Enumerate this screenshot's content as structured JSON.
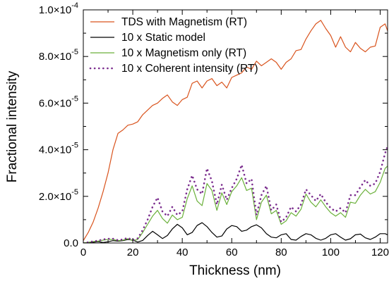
{
  "chart_data": {
    "type": "line",
    "title": "",
    "xlabel": "Thickness (nm)",
    "ylabel": "Fractional intensity",
    "xlim": [
      0,
      123
    ],
    "ylim": [
      0,
      0.0001
    ],
    "grid": false,
    "legend_position": "top-left",
    "x_ticks": [
      {
        "value": 0,
        "label": "0"
      },
      {
        "value": 20,
        "label": "20"
      },
      {
        "value": 40,
        "label": "40"
      },
      {
        "value": 60,
        "label": "60"
      },
      {
        "value": 80,
        "label": "80"
      },
      {
        "value": 100,
        "label": "100"
      },
      {
        "value": 120,
        "label": "120"
      }
    ],
    "y_ticks": [
      {
        "value": 0,
        "mantissa": "0.0",
        "exp": ""
      },
      {
        "value": 2e-05,
        "mantissa": "2.0×10",
        "exp": "-5"
      },
      {
        "value": 4e-05,
        "mantissa": "4.0×10",
        "exp": "-5"
      },
      {
        "value": 6e-05,
        "mantissa": "6.0×10",
        "exp": "-5"
      },
      {
        "value": 8e-05,
        "mantissa": "8.0×10",
        "exp": "-5"
      },
      {
        "value": 0.0001,
        "mantissa": "1.0×10",
        "exp": "-4"
      }
    ],
    "series": [
      {
        "name": "TDS with Magnetism (RT)",
        "color": "#d9541e",
        "style": "solid",
        "x": [
          0,
          2,
          4,
          6,
          8,
          10,
          12,
          14,
          16,
          18,
          20,
          22,
          24,
          26,
          28,
          30,
          32,
          34,
          36,
          38,
          40,
          42,
          44,
          46,
          48,
          50,
          52,
          54,
          56,
          58,
          60,
          62,
          64,
          66,
          68,
          70,
          72,
          74,
          76,
          78,
          80,
          82,
          84,
          86,
          88,
          90,
          92,
          94,
          96,
          98,
          100,
          102,
          104,
          106,
          108,
          110,
          112,
          114,
          116,
          118,
          120,
          122,
          123
        ],
        "y": [
          1e-06,
          4.5e-06,
          9e-06,
          1.5e-05,
          2.2e-05,
          3e-05,
          4e-05,
          4.7e-05,
          4.85e-05,
          5.05e-05,
          5.1e-05,
          5.2e-05,
          5.5e-05,
          5.7e-05,
          5.9e-05,
          6e-05,
          6.2e-05,
          6.35e-05,
          6.05e-05,
          5.9e-05,
          6.15e-05,
          6.25e-05,
          6.85e-05,
          6.95e-05,
          6.65e-05,
          6.95e-05,
          7.05e-05,
          6.75e-05,
          6.9e-05,
          6.65e-05,
          7.1e-05,
          7.2e-05,
          7.3e-05,
          7.55e-05,
          7.45e-05,
          7.8e-05,
          7.6e-05,
          7.75e-05,
          7.9e-05,
          7.75e-05,
          7.45e-05,
          7.75e-05,
          7.9e-05,
          8.25e-05,
          8.3e-05,
          8.75e-05,
          9.1e-05,
          9.4e-05,
          9.55e-05,
          9.2e-05,
          8.9e-05,
          8.4e-05,
          8.85e-05,
          8.4e-05,
          8.2e-05,
          8.6e-05,
          8.35e-05,
          8.2e-05,
          8.4e-05,
          8.45e-05,
          9.25e-05,
          9.4e-05,
          9.1e-05
        ]
      },
      {
        "name": "10 x Static model",
        "color": "#000000",
        "style": "solid",
        "x": [
          0,
          2,
          4,
          6,
          8,
          10,
          12,
          14,
          16,
          18,
          20,
          22,
          24,
          26,
          28,
          30,
          32,
          34,
          36,
          38,
          40,
          42,
          44,
          46,
          48,
          50,
          52,
          54,
          56,
          58,
          60,
          62,
          64,
          66,
          68,
          70,
          72,
          74,
          76,
          78,
          80,
          82,
          84,
          86,
          88,
          90,
          92,
          94,
          96,
          98,
          100,
          102,
          104,
          106,
          108,
          110,
          112,
          114,
          116,
          118,
          120,
          122,
          123
        ],
        "y": [
          0,
          0,
          3e-07,
          6e-07,
          2e-07,
          5e-07,
          1e-06,
          8e-07,
          1e-06,
          1.5e-06,
          1.2e-06,
          4e-07,
          1.1e-06,
          3.2e-06,
          5e-06,
          3.5e-06,
          1.9e-06,
          3.2e-06,
          6e-06,
          8e-06,
          6.5e-06,
          3.5e-06,
          4.5e-06,
          7.5e-06,
          8.7e-06,
          7e-06,
          4.5e-06,
          2.5e-06,
          3e-06,
          6e-06,
          7.5e-06,
          7e-06,
          5e-06,
          5.5e-06,
          7e-06,
          7.8e-06,
          6.5e-06,
          4e-06,
          2.5e-06,
          2.2e-06,
          3.5e-06,
          4e-06,
          1.5e-06,
          1.2e-06,
          2.8e-06,
          4e-06,
          3.5e-06,
          2e-06,
          1.2e-06,
          2e-06,
          3.5e-06,
          4e-06,
          2.5e-06,
          1.2e-06,
          1.8e-06,
          3.5e-06,
          3.8e-06,
          2.2e-06,
          1.5e-06,
          2.5e-06,
          4e-06,
          4e-06,
          3.5e-06
        ]
      },
      {
        "name": "10 x Magnetism only (RT)",
        "color": "#6ab03a",
        "style": "solid",
        "x": [
          0,
          2,
          4,
          6,
          8,
          10,
          12,
          14,
          16,
          18,
          20,
          22,
          24,
          26,
          28,
          30,
          32,
          34,
          36,
          38,
          40,
          42,
          44,
          46,
          48,
          50,
          52,
          54,
          56,
          58,
          60,
          62,
          64,
          66,
          68,
          70,
          72,
          74,
          76,
          78,
          80,
          82,
          84,
          86,
          88,
          90,
          92,
          94,
          96,
          98,
          100,
          102,
          104,
          106,
          108,
          110,
          112,
          114,
          116,
          118,
          120,
          122,
          123
        ],
        "y": [
          0,
          3e-07,
          6e-07,
          8e-07,
          1.2e-06,
          1.5e-06,
          1.5e-06,
          1e-06,
          1.2e-06,
          1.8e-06,
          1e-06,
          1.5e-06,
          4.5e-06,
          8e-06,
          1.15e-05,
          1.4e-05,
          1.05e-05,
          8.5e-06,
          1.2e-05,
          1e-05,
          1.1e-05,
          1.9e-05,
          2.45e-05,
          1.8e-05,
          1.6e-05,
          2.55e-05,
          2.25e-05,
          1.4e-05,
          2.15e-05,
          1.65e-05,
          2.2e-05,
          2.45e-05,
          2.8e-05,
          2.25e-05,
          2.35e-05,
          1e-05,
          1.75e-05,
          2.05e-05,
          1.25e-05,
          1.4e-05,
          8e-06,
          9.5e-06,
          1.3e-05,
          1.15e-05,
          1.45e-05,
          2.1e-05,
          1.75e-05,
          1.55e-05,
          1.85e-05,
          1.55e-05,
          1.3e-05,
          1.15e-05,
          1.3e-05,
          1.1e-05,
          1.75e-05,
          1.7e-05,
          2.05e-05,
          2.3e-05,
          2.1e-05,
          2.2e-05,
          2.6e-05,
          3.2e-05,
          3.3e-05
        ]
      },
      {
        "name": "10 x Coherent intensity (RT)",
        "color": "#7b2d8e",
        "style": "dotted",
        "x": [
          0,
          2,
          4,
          6,
          8,
          10,
          12,
          14,
          16,
          18,
          20,
          22,
          24,
          26,
          28,
          30,
          32,
          34,
          36,
          38,
          40,
          42,
          44,
          46,
          48,
          50,
          52,
          54,
          56,
          58,
          60,
          62,
          64,
          66,
          68,
          70,
          72,
          74,
          76,
          78,
          80,
          82,
          84,
          86,
          88,
          90,
          92,
          94,
          96,
          98,
          100,
          102,
          104,
          106,
          108,
          110,
          112,
          114,
          116,
          118,
          120,
          122,
          123
        ],
        "y": [
          0,
          3e-07,
          7e-07,
          1e-06,
          1.5e-06,
          1.8e-06,
          1.8e-06,
          1.2e-06,
          1.5e-06,
          2.2e-06,
          1.2e-06,
          2e-06,
          5.5e-06,
          1e-05,
          1.55e-05,
          1.95e-05,
          1.35e-05,
          1.15e-05,
          1.55e-05,
          1.2e-05,
          1.35e-05,
          2.3e-05,
          2.9e-05,
          2.3e-05,
          2.1e-05,
          3.2e-05,
          2.65e-05,
          1.65e-05,
          2.5e-05,
          1.85e-05,
          2.35e-05,
          2.75e-05,
          3.35e-05,
          2.55e-05,
          2.75e-05,
          1.2e-05,
          2.05e-05,
          2.45e-05,
          1.4e-05,
          1.65e-05,
          9e-06,
          1.1e-05,
          1.55e-05,
          1.35e-05,
          1.65e-05,
          2.3e-05,
          2.05e-05,
          1.8e-05,
          2.1e-05,
          1.75e-05,
          1.5e-05,
          1.35e-05,
          1.5e-05,
          1.3e-05,
          2.05e-05,
          2.05e-05,
          2.4e-05,
          2.7e-05,
          2.45e-05,
          2.55e-05,
          3.05e-05,
          3.85e-05,
          4.15e-05
        ]
      }
    ]
  }
}
